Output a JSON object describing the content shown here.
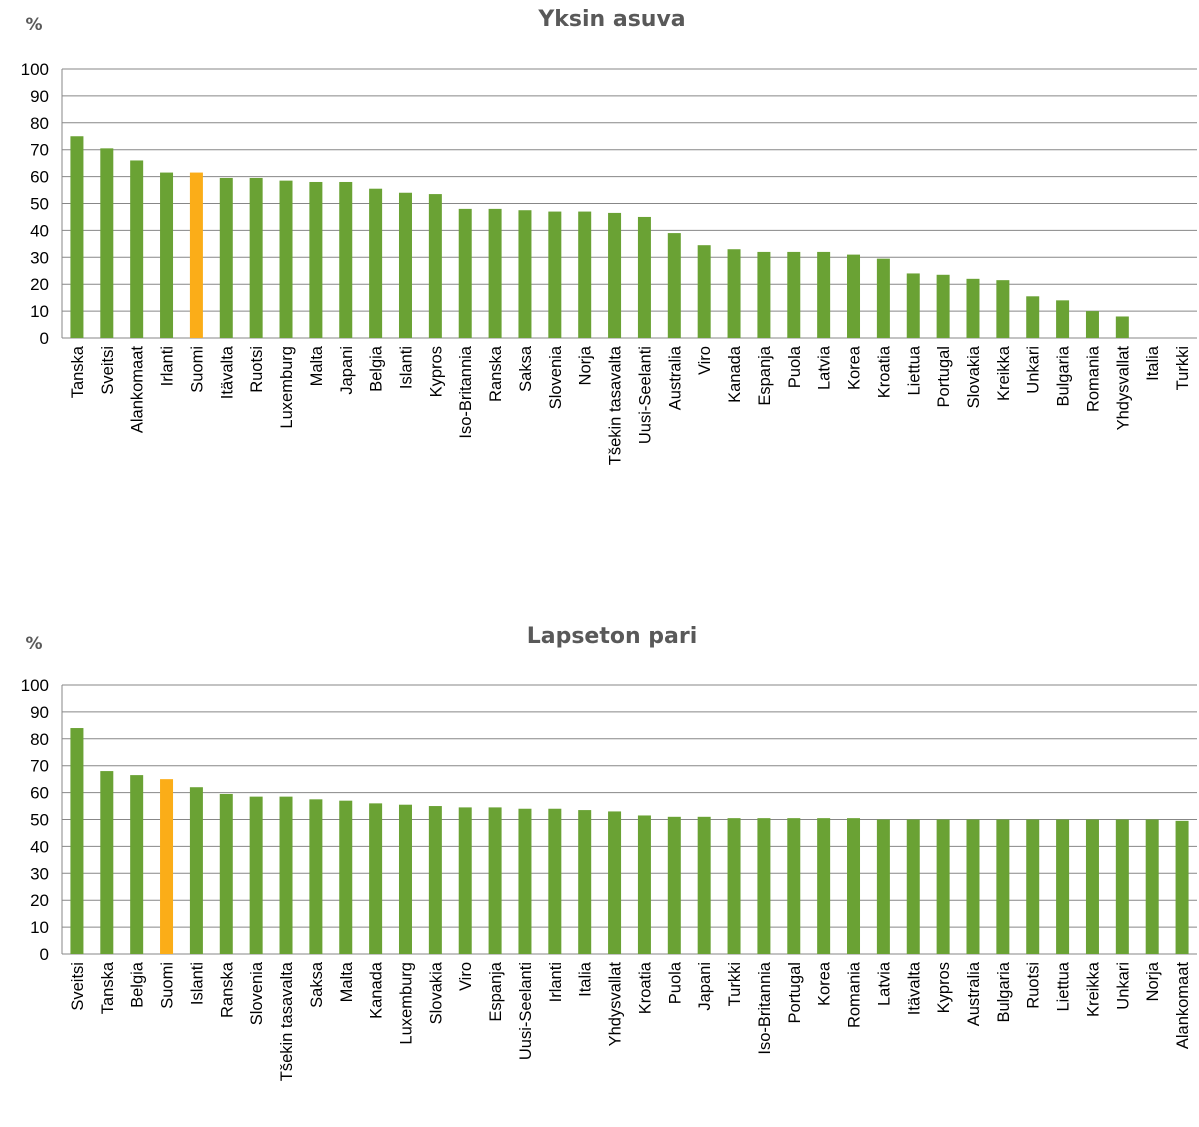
{
  "chart_data": [
    {
      "type": "bar",
      "title": "Yksin asuva",
      "unit_label": "%",
      "ylim": [
        0,
        100
      ],
      "yticks": [
        0,
        10,
        20,
        30,
        40,
        50,
        60,
        70,
        80,
        90,
        100
      ],
      "grid": true,
      "legend": "none",
      "colors": {
        "default": "#6aa234",
        "highlight": "#fbad18",
        "grid": "#878787"
      },
      "highlight_category": "Suomi",
      "categories": [
        "Tanska",
        "Sveitsi",
        "Alankomaat",
        "Irlanti",
        "Suomi",
        "Itävalta",
        "Ruotsi",
        "Luxemburg",
        "Malta",
        "Japani",
        "Belgia",
        "Islanti",
        "Kypros",
        "Iso-Britannia",
        "Ranska",
        "Saksa",
        "Slovenia",
        "Norja",
        "Tšekin tasavalta",
        "Uusi-Seelanti",
        "Australia",
        "Viro",
        "Kanada",
        "Espanja",
        "Puola",
        "Latvia",
        "Korea",
        "Kroatia",
        "Liettua",
        "Portugal",
        "Slovakia",
        "Kreikka",
        "Unkari",
        "Bulgaria",
        "Romania",
        "Yhdysvallat",
        "Italia",
        "Turkki"
      ],
      "values": [
        75,
        70.5,
        66,
        61.5,
        61.5,
        59.5,
        59.5,
        58.5,
        58,
        58,
        55.5,
        54,
        53.5,
        48,
        48,
        47.5,
        47,
        47,
        46.5,
        45,
        39,
        34.5,
        33,
        32,
        32,
        32,
        31,
        29.5,
        24,
        23.5,
        22,
        21.5,
        15.5,
        14,
        10,
        8,
        0,
        0
      ]
    },
    {
      "type": "bar",
      "title": "Lapseton pari",
      "unit_label": "%",
      "ylim": [
        0,
        100
      ],
      "yticks": [
        0,
        10,
        20,
        30,
        40,
        50,
        60,
        70,
        80,
        90,
        100
      ],
      "grid": true,
      "legend": "none",
      "colors": {
        "default": "#6aa234",
        "highlight": "#fbad18",
        "grid": "#878787"
      },
      "highlight_category": "Suomi",
      "categories": [
        "Sveitsi",
        "Tanska",
        "Belgia",
        "Suomi",
        "Islanti",
        "Ranska",
        "Slovenia",
        "Tšekin tasavalta",
        "Saksa",
        "Malta",
        "Kanada",
        "Luxemburg",
        "Slovakia",
        "Viro",
        "Espanja",
        "Uusi-Seelanti",
        "Irlanti",
        "Italia",
        "Yhdysvallat",
        "Kroatia",
        "Puola",
        "Japani",
        "Turkki",
        "Iso-Britannia",
        "Portugal",
        "Korea",
        "Romania",
        "Latvia",
        "Itävalta",
        "Kypros",
        "Australia",
        "Bulgaria",
        "Ruotsi",
        "Liettua",
        "Kreikka",
        "Unkari",
        "Norja",
        "Alankomaat"
      ],
      "values": [
        84,
        68,
        66.5,
        65,
        62,
        59.5,
        58.5,
        58.5,
        57.5,
        57,
        56,
        55.5,
        55,
        54.5,
        54.5,
        54,
        54,
        53.5,
        53,
        51.5,
        51,
        51,
        50.5,
        50.5,
        50.5,
        50.5,
        50.5,
        50,
        50,
        50,
        50,
        50,
        50,
        50,
        50,
        50,
        50,
        49.5
      ]
    }
  ]
}
